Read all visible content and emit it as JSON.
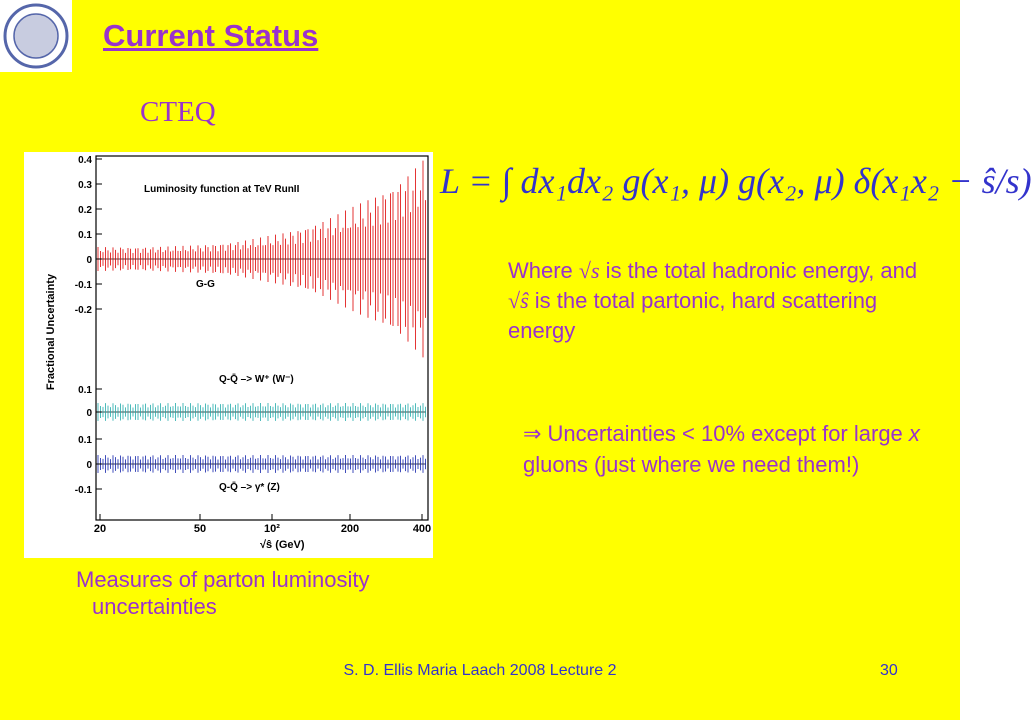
{
  "header": {
    "title": "Current Status",
    "subtitle": "CTEQ"
  },
  "figure": {
    "title": "Luminosity function at TeV RunII",
    "y_label": "Fractional Uncertainty",
    "panels": [
      {
        "label": "G-G",
        "yticks": [
          "0.4",
          "0.3",
          "0.2",
          "0.1",
          "0",
          "-0.1",
          "-0.2"
        ]
      },
      {
        "label": "Q-Q̄ –> W⁺ (W⁻)",
        "yticks": [
          "0.1",
          "0"
        ]
      },
      {
        "label": "Q-Q̄ –> γ* (Z)",
        "yticks": [
          "0.1",
          "0",
          "-0.1"
        ]
      }
    ],
    "xticks": [
      "20",
      "50",
      "10²",
      "200",
      "400"
    ],
    "x_label": "√ŝ   (GeV)"
  },
  "caption": [
    "Measures of parton luminosity",
    "uncertainties"
  ],
  "formula": "L = ∫ dx₁dx₂ g(x₁, μ) g(x₂, μ) δ(x₁x₂ − ŝ/s)",
  "where": [
    "Where ",
    "√s",
    " is the total hadronic energy, and ",
    "√ŝ",
    " is the total partonic, hard scattering energy"
  ],
  "bullet": [
    "⇒ Uncertainties < 10% except for large ",
    "x",
    " gluons (just where we need them!)"
  ],
  "footer": {
    "left": "S. D. Ellis   Maria Laach 2008 Lecture 2",
    "right": "30"
  }
}
